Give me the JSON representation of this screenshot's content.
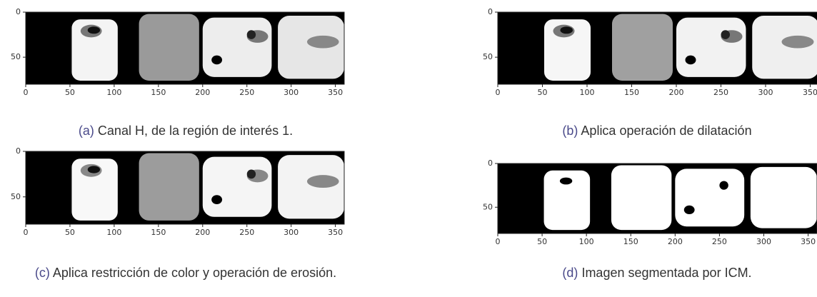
{
  "panels": [
    {
      "label": "(a)",
      "caption": "Canal H, de la región de interés 1.",
      "xlim": [
        0,
        360
      ],
      "ylim": [
        0,
        80
      ],
      "xticks": [
        0,
        50,
        100,
        150,
        200,
        250,
        300,
        350
      ],
      "yticks": [
        0,
        50
      ]
    },
    {
      "label": "(b)",
      "caption": "Aplica operación de dilatación",
      "xlim": [
        0,
        360
      ],
      "ylim": [
        0,
        80
      ],
      "xticks": [
        0,
        50,
        100,
        150,
        200,
        250,
        300,
        350
      ],
      "yticks": [
        0,
        50
      ]
    },
    {
      "label": "(c)",
      "caption": "Aplica restricción de color y operación de erosión.",
      "xlim": [
        0,
        360
      ],
      "ylim": [
        0,
        80
      ],
      "xticks": [
        0,
        50,
        100,
        150,
        200,
        250,
        300,
        350
      ],
      "yticks": [
        0,
        50
      ]
    },
    {
      "label": "(d)",
      "caption": "Imagen segmentada por ICM.",
      "xlim": [
        0,
        360
      ],
      "ylim": [
        0,
        80
      ],
      "xticks": [
        0,
        50,
        100,
        150,
        200,
        250,
        300,
        350
      ],
      "yticks": [
        0,
        50
      ]
    }
  ]
}
